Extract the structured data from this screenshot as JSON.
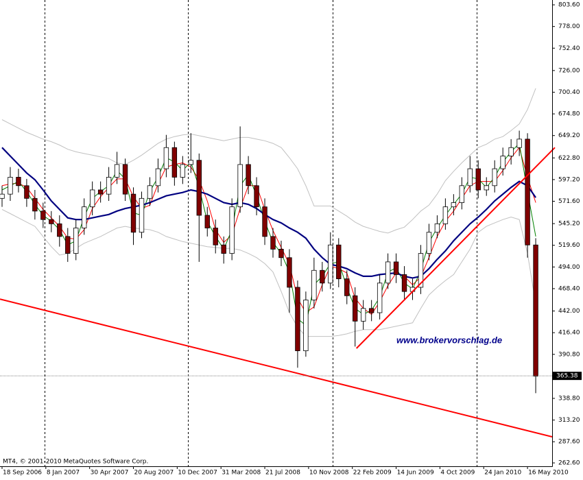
{
  "chart_data": {
    "type": "candlestick",
    "xlim": [
      -0.75,
      201
    ],
    "ylim": [
      258.6,
      809.3
    ],
    "yticks": [
      {
        "value": 803.6,
        "label": "803.60"
      },
      {
        "value": 778.0,
        "label": "778.00"
      },
      {
        "value": 752.4,
        "label": "752.40"
      },
      {
        "value": 726.0,
        "label": "726.00"
      },
      {
        "value": 700.4,
        "label": "700.40"
      },
      {
        "value": 674.8,
        "label": "674.80"
      },
      {
        "value": 649.2,
        "label": "649.20"
      },
      {
        "value": 622.8,
        "label": "622.80"
      },
      {
        "value": 597.2,
        "label": "597.20"
      },
      {
        "value": 571.6,
        "label": "571.60"
      },
      {
        "value": 545.2,
        "label": "545.20"
      },
      {
        "value": 519.6,
        "label": "519.60"
      },
      {
        "value": 494.0,
        "label": "494.00"
      },
      {
        "value": 468.4,
        "label": "468.40"
      },
      {
        "value": 442.0,
        "label": "442.00"
      },
      {
        "value": 416.4,
        "label": "416.40"
      },
      {
        "value": 390.8,
        "label": "390.80"
      },
      {
        "value": 338.8,
        "label": "338.80"
      },
      {
        "value": 313.2,
        "label": "313.20"
      },
      {
        "value": 287.6,
        "label": "287.60"
      },
      {
        "value": 262.6,
        "label": "262.60"
      }
    ],
    "xticks": [
      {
        "value": 0,
        "label": "18 Sep 2006"
      },
      {
        "value": 16,
        "label": "8 Jan 2007"
      },
      {
        "value": 32,
        "label": "30 Apr 2007"
      },
      {
        "value": 48,
        "label": "20 Aug 2007"
      },
      {
        "value": 64,
        "label": "10 Dec 2007"
      },
      {
        "value": 80,
        "label": "31 Mar 2008"
      },
      {
        "value": 96,
        "label": "21 Jul 2008"
      },
      {
        "value": 112,
        "label": "10 Nov 2008"
      },
      {
        "value": 128,
        "label": "22 Feb 2009"
      },
      {
        "value": 144,
        "label": "14 Jun 2009"
      },
      {
        "value": 160,
        "label": "4 Oct 2009"
      },
      {
        "value": 176,
        "label": "24 Jan 2010"
      },
      {
        "value": 192,
        "label": "16 May 2010"
      }
    ],
    "x_grid": [
      15.5,
      68,
      120.8,
      173.5
    ],
    "up_color": "#ffffff",
    "down_color": "#800000",
    "x": [
      0,
      3,
      6,
      9,
      12,
      15,
      18,
      21,
      24,
      27,
      30,
      33,
      36,
      39,
      42,
      45,
      48,
      51,
      54,
      57,
      60,
      63,
      66,
      69,
      72,
      75,
      78,
      81,
      84,
      87,
      90,
      93,
      96,
      99,
      102,
      105,
      108,
      111,
      114,
      117,
      120,
      123,
      126,
      129,
      132,
      135,
      138,
      141,
      144,
      147,
      150,
      153,
      156,
      159,
      162,
      165,
      168,
      171,
      174,
      177,
      180,
      183,
      186,
      189,
      192,
      195
    ],
    "open": [
      575,
      580,
      600,
      590,
      575,
      560,
      550,
      545,
      530,
      510,
      540,
      565,
      585,
      580,
      600,
      615,
      580,
      535,
      575,
      590,
      610,
      635,
      600,
      615,
      620,
      555,
      540,
      520,
      510,
      565,
      615,
      590,
      565,
      530,
      515,
      505,
      470,
      395,
      455,
      490,
      475,
      520,
      480,
      460,
      430,
      445,
      440,
      475,
      500,
      485,
      465,
      470,
      510,
      535,
      545,
      565,
      570,
      590,
      610,
      585,
      590,
      610,
      625,
      635,
      645,
      520
    ],
    "high": [
      590,
      612,
      610,
      598,
      585,
      570,
      560,
      555,
      540,
      550,
      575,
      595,
      595,
      612,
      630,
      622,
      588,
      583,
      600,
      622,
      650,
      642,
      625,
      652,
      628,
      565,
      550,
      530,
      575,
      660,
      625,
      600,
      575,
      540,
      525,
      515,
      478,
      465,
      505,
      500,
      535,
      528,
      490,
      470,
      455,
      455,
      485,
      510,
      510,
      495,
      480,
      520,
      545,
      555,
      575,
      580,
      600,
      625,
      620,
      600,
      620,
      635,
      645,
      655,
      652,
      528
    ],
    "low": [
      565,
      572,
      582,
      565,
      550,
      540,
      535,
      518,
      500,
      502,
      532,
      555,
      570,
      572,
      592,
      572,
      520,
      528,
      566,
      582,
      600,
      590,
      592,
      605,
      500,
      530,
      510,
      498,
      502,
      558,
      580,
      555,
      520,
      505,
      495,
      440,
      375,
      388,
      445,
      465,
      468,
      470,
      450,
      400,
      420,
      430,
      432,
      468,
      475,
      455,
      455,
      462,
      502,
      528,
      538,
      555,
      562,
      582,
      575,
      578,
      582,
      602,
      615,
      625,
      505,
      345
    ],
    "close": [
      580,
      600,
      590,
      575,
      560,
      550,
      545,
      530,
      510,
      540,
      565,
      585,
      580,
      600,
      615,
      580,
      535,
      575,
      590,
      610,
      635,
      600,
      615,
      620,
      555,
      540,
      520,
      510,
      565,
      615,
      590,
      565,
      530,
      515,
      505,
      470,
      395,
      455,
      490,
      475,
      520,
      480,
      460,
      430,
      445,
      440,
      475,
      500,
      485,
      465,
      470,
      510,
      535,
      545,
      565,
      570,
      590,
      610,
      585,
      590,
      610,
      625,
      635,
      645,
      520,
      365
    ],
    "series": [
      {
        "color": "#c0c0c0",
        "values": [
          668,
          663,
          658,
          653,
          649,
          645,
          642,
          638,
          633,
          630,
          628,
          626,
          624,
          622,
          617,
          615,
          620,
          626,
          633,
          640,
          645,
          648,
          650,
          651,
          649,
          647,
          645,
          643,
          645,
          647,
          647,
          645,
          643,
          640,
          635,
          623,
          610,
          590,
          566,
          566,
          566,
          560,
          554,
          547,
          542,
          539,
          536,
          534,
          538,
          541,
          550,
          560,
          567,
          580,
          596,
          607,
          617,
          626,
          635,
          639,
          645,
          648,
          655,
          663,
          680,
          705
        ]
      },
      {
        "color": "#c0c0c0",
        "values": [
          562,
          557,
          552,
          547,
          542,
          530,
          518,
          508,
          510,
          516,
          522,
          526,
          530,
          535,
          540,
          542,
          540,
          539,
          538,
          535,
          530,
          527,
          524,
          522,
          520,
          518,
          517,
          516,
          516,
          514,
          510,
          505,
          498,
          488,
          465,
          440,
          423,
          412,
          412,
          412,
          412,
          413,
          415,
          418,
          420,
          420,
          420,
          422,
          424,
          426,
          428,
          445,
          461,
          470,
          478,
          485,
          500,
          515,
          535,
          542,
          546,
          550,
          553,
          550,
          510,
          450
        ]
      },
      {
        "color": "#ff0000",
        "values": [
          590,
          592,
          593,
          588,
          575,
          562,
          552,
          542,
          528,
          527,
          538,
          563,
          577,
          588,
          598,
          598,
          577,
          563,
          567,
          592,
          612,
          615,
          617,
          612,
          597,
          572,
          538,
          523,
          532,
          563,
          590,
          590,
          562,
          537,
          517,
          497,
          457,
          440,
          447,
          473,
          495,
          492,
          487,
          457,
          445,
          438,
          453,
          472,
          487,
          483,
          473,
          482,
          505,
          530,
          548,
          560,
          575,
          590,
          595,
          595,
          595,
          608,
          623,
          635,
          600,
          570
        ]
      },
      {
        "color": "#008000",
        "values": [
          585,
          590,
          595,
          583,
          568,
          555,
          548,
          538,
          520,
          525,
          553,
          575,
          583,
          590,
          608,
          598,
          558,
          555,
          583,
          600,
          623,
          618,
          608,
          618,
          588,
          548,
          530,
          515,
          538,
          590,
          603,
          578,
          548,
          523,
          510,
          488,
          433,
          425,
          473,
          483,
          498,
          500,
          470,
          445,
          438,
          443,
          458,
          488,
          493,
          475,
          468,
          490,
          523,
          540,
          555,
          568,
          580,
          600,
          598,
          588,
          600,
          618,
          630,
          640,
          583,
          530
        ]
      },
      {
        "color": "#000080",
        "values": [
          635,
          625,
          615,
          605,
          597,
          585,
          572,
          562,
          552,
          550,
          550,
          552,
          554,
          556,
          560,
          563,
          565,
          567,
          570,
          574,
          578,
          580,
          582,
          585,
          583,
          580,
          575,
          570,
          568,
          570,
          568,
          563,
          556,
          550,
          546,
          540,
          535,
          528,
          515,
          505,
          497,
          495,
          492,
          487,
          483,
          483,
          485,
          486,
          487,
          483,
          481,
          483,
          492,
          503,
          513,
          525,
          535,
          545,
          553,
          562,
          572,
          580,
          588,
          595,
          590,
          576
        ]
      }
    ],
    "trendlines": [
      {
        "color": "#ff0000",
        "x": [
          -0.75,
          201
        ],
        "y": [
          456,
          293.4
        ]
      },
      {
        "color": "#ff0000",
        "x": [
          129.5,
          202
        ],
        "y": [
          397.9,
          635
        ]
      }
    ],
    "last_price": 365.38,
    "watermark": "www.brokervorschlag.de",
    "copyright": "MT4, © 2001-2010 MetaQuotes Software Corp."
  }
}
